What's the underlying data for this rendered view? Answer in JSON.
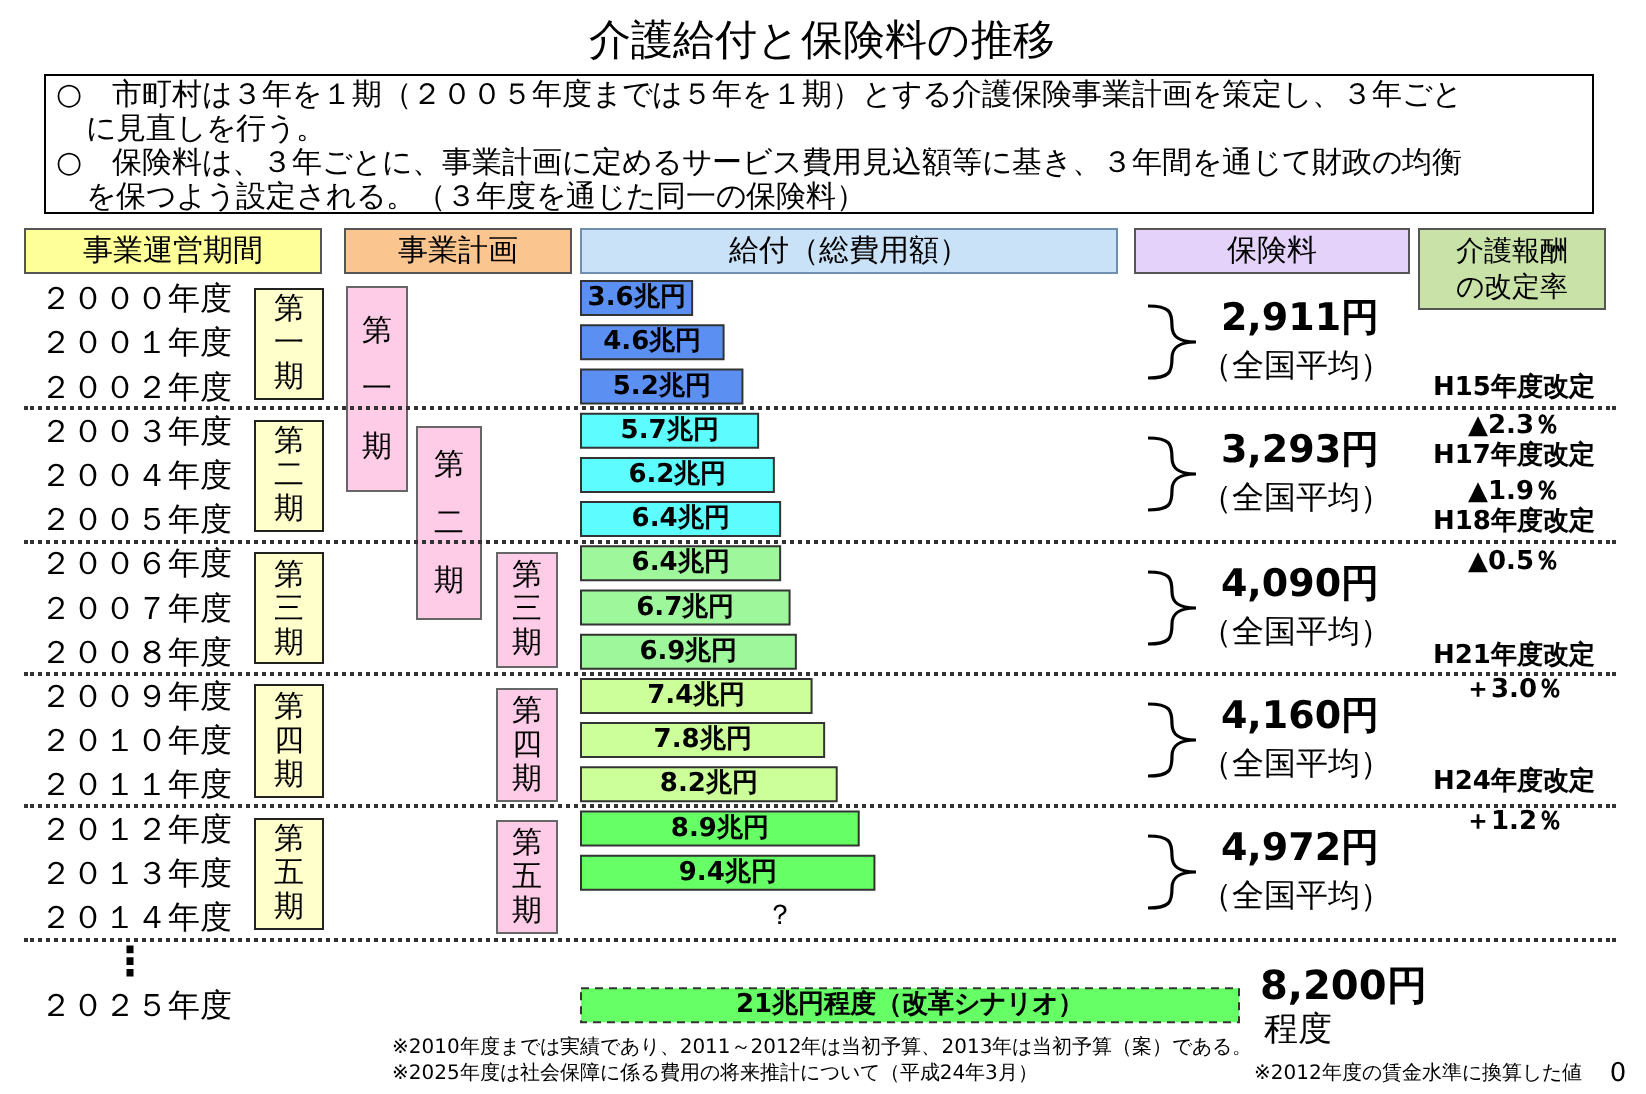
{
  "chart_data": {
    "type": "bar",
    "orientation": "horizontal",
    "tick_labels": "y",
    "title": "介護給付と保険料の推移",
    "xlabel": "給付（総費用額）",
    "ylabel": "事業運営期間",
    "categories": [
      "２０００年度",
      "２００１年度",
      "２００２年度",
      "２００３年度",
      "２００４年度",
      "２００５年度",
      "２００６年度",
      "２００７年度",
      "２００８年度",
      "２００９年度",
      "２０１０年度",
      "２０１１年度",
      "２０１２年度",
      "２０１３年度",
      "２０１４年度",
      null,
      "２０２５年度"
    ],
    "series": [
      {
        "colors": [
          "#5b8ff2",
          "#5b8ff2",
          "#5b8ff2",
          "#5cfcff",
          "#5cfcff",
          "#5cfcff",
          "#9ff79b",
          "#9ff79b",
          "#9ff79b",
          "#ccff99",
          "#ccff99",
          "#ccff99",
          "#66ff66",
          "#66ff66",
          null,
          null,
          null
        ],
        "values": [
          3.6,
          4.6,
          5.2,
          5.7,
          6.2,
          6.4,
          6.4,
          6.7,
          6.9,
          7.4,
          7.8,
          8.2,
          8.9,
          9.4,
          null,
          null,
          null
        ],
        "value_labels": [
          "3.6兆円",
          "4.6兆円",
          "5.2兆円",
          "5.7兆円",
          "6.2兆円",
          "6.4兆円",
          "6.4兆円",
          "6.7兆円",
          "6.9兆円",
          "7.4兆円",
          "7.8兆円",
          "8.2兆円",
          "8.9兆円",
          "9.4兆円",
          null,
          null,
          null
        ]
      },
      {
        "color": "#66ff66",
        "line_style": "dashed",
        "values": [
          null,
          null,
          null,
          null,
          null,
          null,
          null,
          null,
          null,
          null,
          null,
          null,
          null,
          null,
          null,
          null,
          21
        ],
        "value_labels": [
          null,
          null,
          null,
          null,
          null,
          null,
          null,
          null,
          null,
          null,
          null,
          null,
          null,
          null,
          "？",
          null,
          "21兆円程度（改革シナリオ）"
        ]
      }
    ],
    "annotations": [
      "○　市町村は３年を１期（２００５年度までは５年を１期）とする介護保険事業計画を策定し、３年ごとに見直しを行う。",
      "○　保険料は、３年ごとに、事業計画に定めるサービス費用見込額等に基き、３年間を通じて財政の均衡を保つよう設定される。（３年度を通じた同一の保険料）",
      "事業計画",
      "保険料",
      "介護報酬の改定率",
      "第一期",
      "第二期",
      "第三期",
      "第四期",
      "第五期",
      "第一期",
      "第二期",
      "第三期",
      "第四期",
      "第五期",
      "2,911円",
      "（全国平均）",
      "3,293円",
      "（全国平均）",
      "4,090円",
      "（全国平均）",
      "4,160円",
      "（全国平均）",
      "4,972円",
      "（全国平均）",
      "8,200円",
      "程度",
      "H15年度改定",
      "▲2.3％",
      "H17年度改定",
      "▲1.9％",
      "H18年度改定",
      "▲0.5％",
      "H21年度改定",
      "＋3.0％",
      "H24年度改定",
      "＋1.2％",
      "⋮",
      "※2010年度までは実績であり、2011～2012年は当初予算、2013年は当初予算（案）である。",
      "※2025年度は社会保障に係る費用の将来推計について（平成24年3月）",
      "※2012年度の賃金水準に換算した値",
      "0"
    ]
  }
}
